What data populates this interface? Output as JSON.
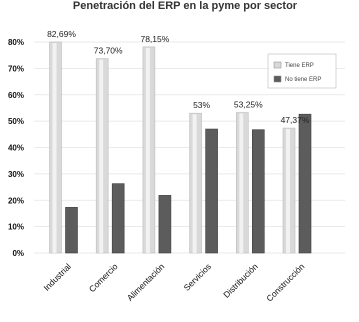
{
  "chart_data": {
    "type": "bar",
    "title": "Penetración del ERP en la pyme por sector",
    "categories": [
      "Industrial",
      "Comercio",
      "Alimentación",
      "Servicios",
      "Distribución",
      "Construcción"
    ],
    "series": [
      {
        "name": "Tiene ERP",
        "values": [
          82.69,
          73.7,
          78.15,
          53,
          53.25,
          47.37
        ],
        "labels": [
          "82,69%",
          "73,70%",
          "78,15%",
          "53%",
          "53,25%",
          "47,37%"
        ],
        "color": "#d9d9d9"
      },
      {
        "name": "No tiene ERP",
        "values": [
          17.31,
          26.3,
          21.85,
          47,
          46.75,
          52.63
        ],
        "color": "#5c5c5c"
      }
    ],
    "ylim": [
      0,
      80
    ],
    "yticks": [
      "0%",
      "10%",
      "20%",
      "30%",
      "40%",
      "50%",
      "60%",
      "70%",
      "80%"
    ],
    "ytick_values": [
      0,
      10,
      20,
      30,
      40,
      50,
      60,
      70,
      80
    ],
    "grid": true,
    "legend": "top-right"
  }
}
